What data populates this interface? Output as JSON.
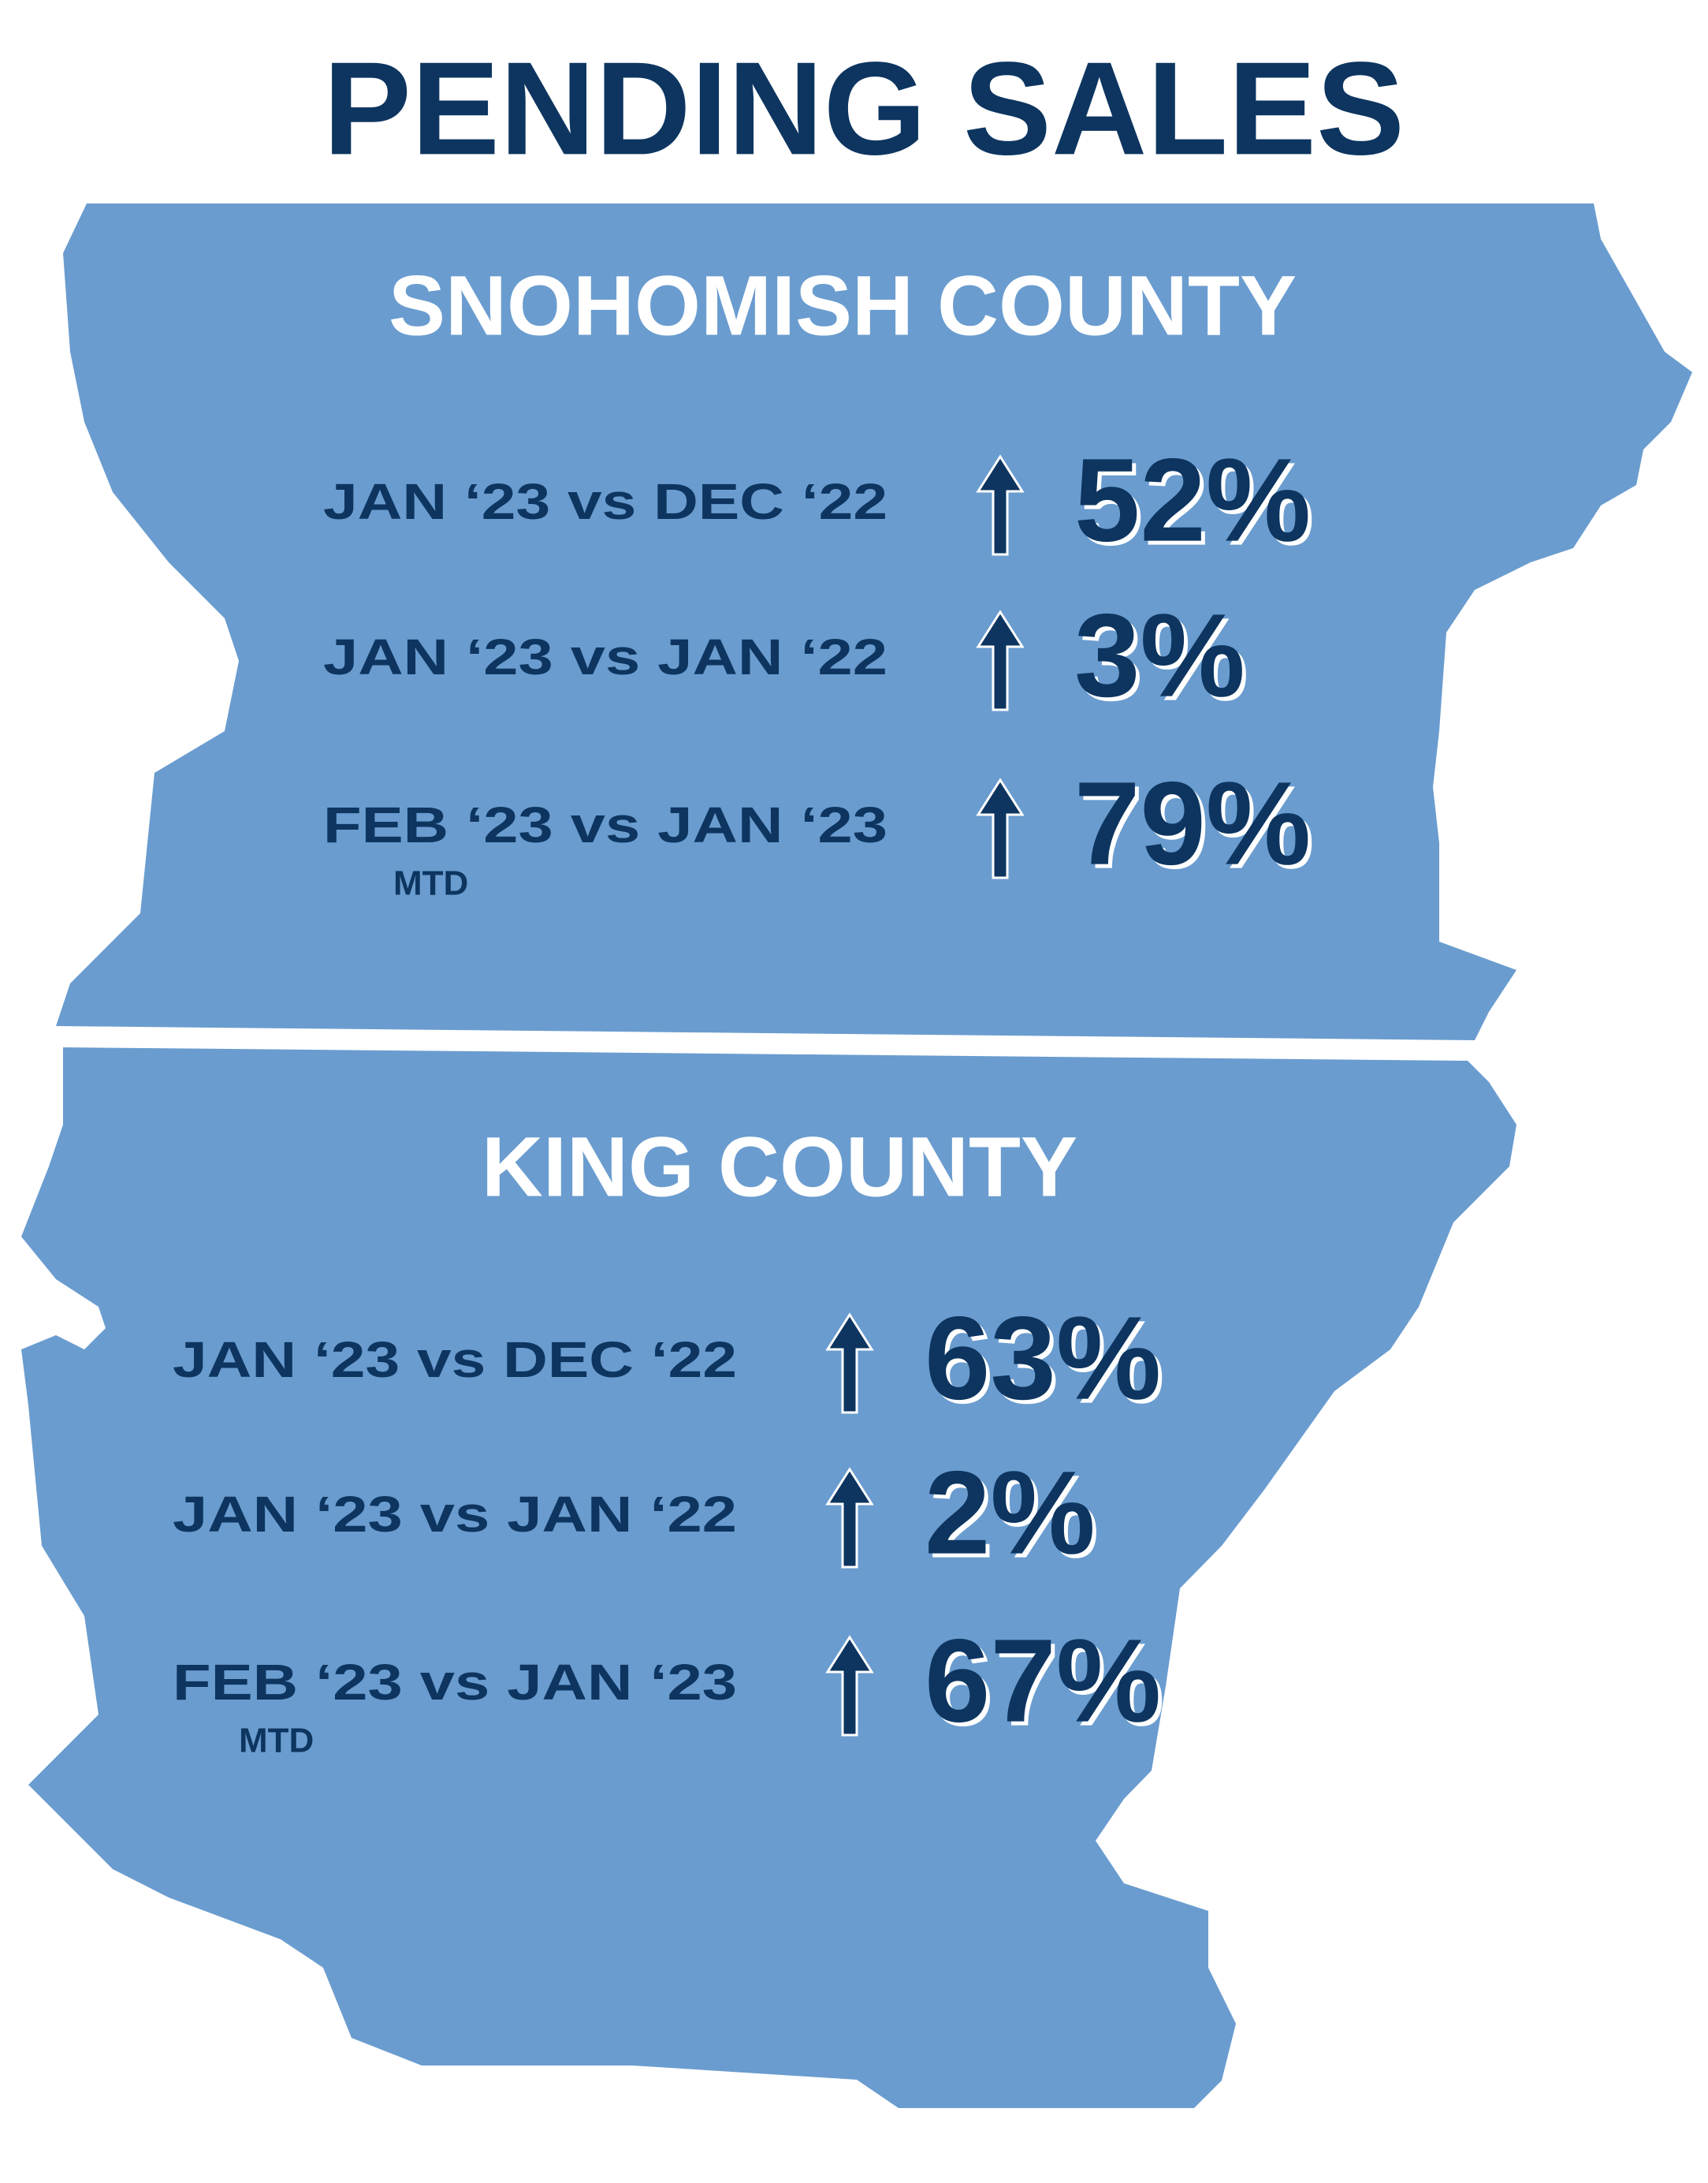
{
  "title": "PENDING SALES",
  "counties": [
    {
      "name": "SNOHOMISH COUNTY",
      "rows": [
        {
          "label": "JAN ‘23 vs DEC ‘22",
          "value": "52%"
        },
        {
          "label": "JAN ‘23 vs JAN ‘22",
          "value": "3%"
        },
        {
          "label": "FEB ‘23 vs JAN ‘23",
          "note": "MTD",
          "value": "79%"
        }
      ]
    },
    {
      "name": "KING COUNTY",
      "rows": [
        {
          "label": "JAN ‘23 vs DEC ‘22",
          "value": "63%"
        },
        {
          "label": "JAN ‘23 vs JAN ‘22",
          "value": "2%"
        },
        {
          "label": "FEB ‘23 vs JAN ‘23",
          "note": "MTD",
          "value": "67%"
        }
      ]
    }
  ]
}
